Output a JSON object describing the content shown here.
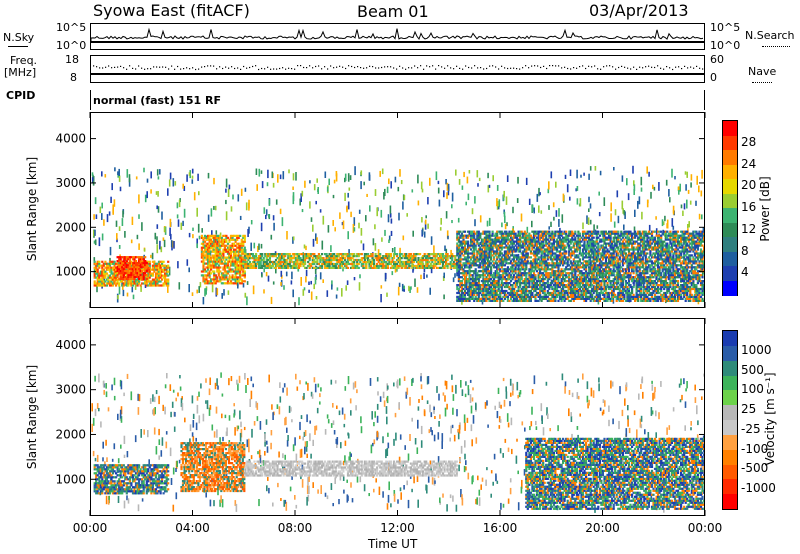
{
  "header": {
    "station": "Syowa East (fitACF)",
    "beam": "Beam 01",
    "date": "03/Apr/2013"
  },
  "top_panels": {
    "nsky_label": "N.Sky",
    "nsky_ticks": [
      "10^5",
      "10^0"
    ],
    "nsearch_label": "N.Search",
    "freq_label_1": "Freq.",
    "freq_label_2": "[MHz]",
    "freq_ticks": [
      "18",
      "8"
    ],
    "nave_ticks": [
      "60",
      "0"
    ],
    "nave_label": "Nave",
    "cpid_label": "CPID",
    "mode_text": "normal (fast) 151 RF"
  },
  "power_colorbar": {
    "label": "Power [dB]",
    "ticks": [
      "28",
      "24",
      "20",
      "16",
      "12",
      "8",
      "4"
    ],
    "colors": [
      "#ff0000",
      "#ff3a00",
      "#ff7a00",
      "#ffb000",
      "#e6d800",
      "#9acd32",
      "#3cb371",
      "#2e8b57",
      "#2f7f7f",
      "#1f5fa0",
      "#1e3fb0",
      "#0000ff"
    ]
  },
  "velocity_colorbar": {
    "label": "Velocity [m s⁻¹]",
    "ticks": [
      "1000",
      "500",
      "100",
      "25",
      "-25",
      "-100",
      "-500",
      "-1000"
    ],
    "colors": [
      "#1a3cb0",
      "#2a5ca8",
      "#2e8b7a",
      "#3cb35a",
      "#6cd24a",
      "#b8b8b8",
      "#c8c8c8",
      "#ffa040",
      "#ff8000",
      "#ff5a00",
      "#ff2a00",
      "#ff0000"
    ]
  },
  "chart_data": [
    {
      "type": "heatmap",
      "name": "Power",
      "ylabel": "Slant Range [km]",
      "ylim": [
        180,
        4600
      ],
      "yticks": [
        1000,
        2000,
        3000,
        4000
      ],
      "xlim": [
        0,
        24
      ],
      "xticks": [
        "00:00",
        "04:00",
        "08:00",
        "12:00",
        "16:00",
        "20:00",
        "00:00"
      ],
      "regions": [
        {
          "t0": 0.1,
          "t1": 3.0,
          "r0": 650,
          "r1": 1200,
          "level": "high"
        },
        {
          "t0": 1.0,
          "t1": 2.2,
          "r0": 800,
          "r1": 1300,
          "level": "very_high"
        },
        {
          "t0": 4.3,
          "t1": 6.0,
          "r0": 700,
          "r1": 1800,
          "level": "high"
        },
        {
          "t0": 6.0,
          "t1": 14.3,
          "r0": 1050,
          "r1": 1400,
          "level": "medium_high"
        },
        {
          "t0": 14.3,
          "t1": 24,
          "r0": 300,
          "r1": 1900,
          "level": "low"
        }
      ]
    },
    {
      "type": "heatmap",
      "name": "Velocity",
      "ylabel": "Slant Range [km]",
      "ylim": [
        180,
        4600
      ],
      "yticks": [
        1000,
        2000,
        3000,
        4000
      ],
      "xlim": [
        0,
        24
      ],
      "xticks": [
        "00:00",
        "04:00",
        "08:00",
        "12:00",
        "16:00",
        "20:00",
        "00:00"
      ],
      "xlabel": "Time UT",
      "regions": [
        {
          "t0": 0.1,
          "t1": 3.0,
          "r0": 650,
          "r1": 1300,
          "level": "positive"
        },
        {
          "t0": 3.5,
          "t1": 6.0,
          "r0": 700,
          "r1": 1800,
          "level": "negative"
        },
        {
          "t0": 6.0,
          "t1": 14.3,
          "r0": 1050,
          "r1": 1400,
          "level": "near_zero"
        },
        {
          "t0": 17.0,
          "t1": 24,
          "r0": 300,
          "r1": 1900,
          "level": "positive"
        }
      ]
    }
  ]
}
